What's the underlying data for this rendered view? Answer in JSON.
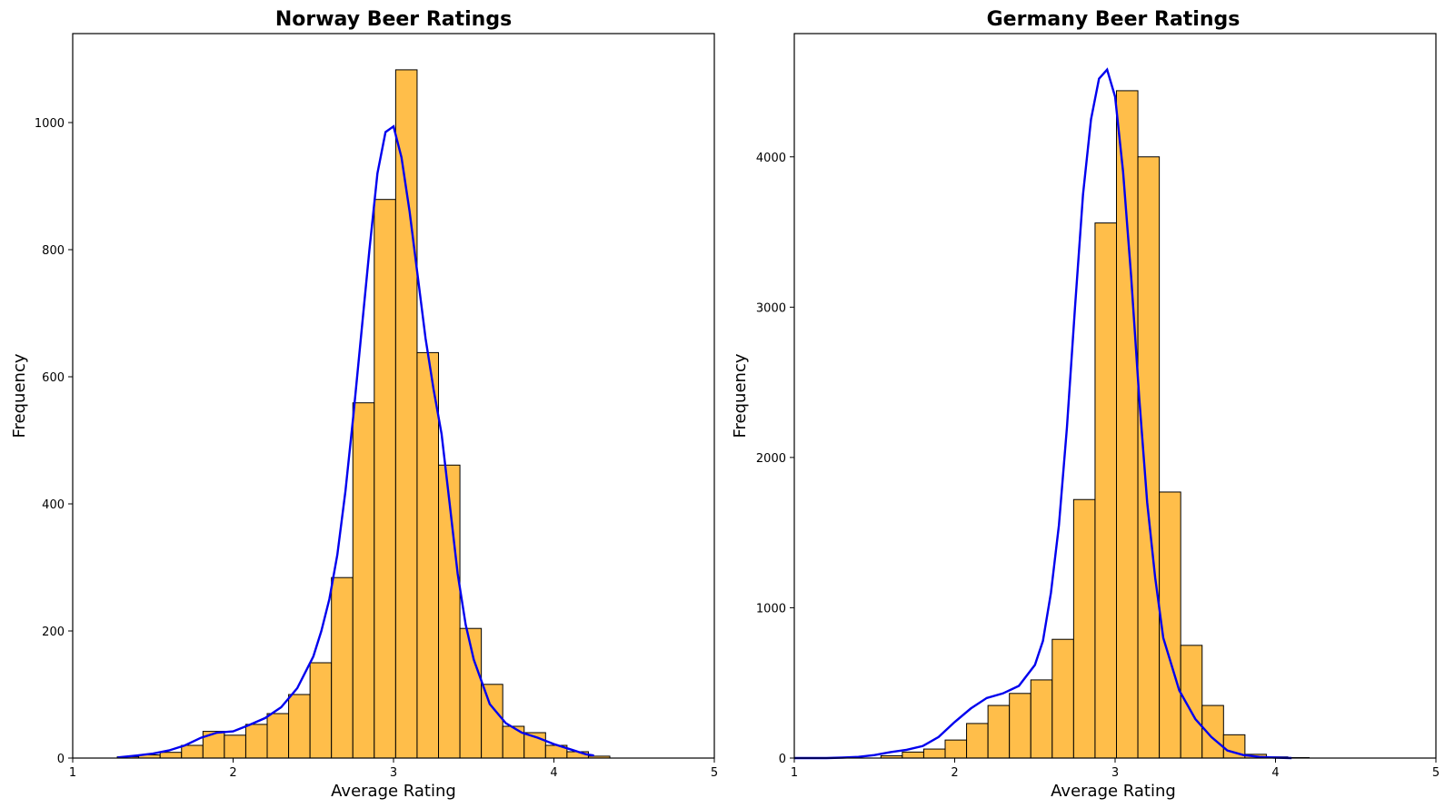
{
  "chart_data": [
    {
      "type": "bar",
      "title": "Norway Beer Ratings",
      "xlabel": "Average Rating",
      "ylabel": "Frequency",
      "xlim": [
        1,
        5
      ],
      "ylim": [
        0,
        1140
      ],
      "xticks": [
        1,
        2,
        3,
        4,
        5
      ],
      "yticks": [
        0,
        200,
        400,
        600,
        800,
        1000
      ],
      "bin_start": 1.278,
      "bin_width": 0.1335,
      "values": [
        2,
        5,
        9,
        20,
        42,
        36,
        53,
        70,
        100,
        150,
        284,
        559,
        879,
        1083,
        638,
        461,
        204,
        116,
        50,
        40,
        20,
        10,
        3
      ],
      "kde": {
        "x": [
          1.28,
          1.4,
          1.5,
          1.6,
          1.7,
          1.8,
          1.9,
          2.0,
          2.1,
          2.2,
          2.3,
          2.4,
          2.5,
          2.55,
          2.6,
          2.65,
          2.7,
          2.75,
          2.8,
          2.85,
          2.9,
          2.95,
          3.0,
          3.05,
          3.1,
          3.15,
          3.2,
          3.25,
          3.3,
          3.35,
          3.4,
          3.45,
          3.5,
          3.6,
          3.7,
          3.8,
          3.9,
          4.0,
          4.1,
          4.2,
          4.25
        ],
        "y": [
          1,
          4,
          7,
          12,
          20,
          32,
          40,
          42,
          52,
          63,
          80,
          110,
          160,
          200,
          250,
          320,
          420,
          540,
          670,
          800,
          920,
          985,
          994,
          945,
          860,
          760,
          660,
          580,
          510,
          400,
          290,
          210,
          155,
          85,
          55,
          40,
          32,
          22,
          14,
          6,
          4
        ]
      },
      "bar_color": "#ffbe4a",
      "edge_color": "#000000",
      "kde_color": "#0000ee"
    },
    {
      "type": "bar",
      "title": "Germany Beer Ratings",
      "xlabel": "Average Rating",
      "ylabel": "Frequency",
      "xlim": [
        1,
        5
      ],
      "ylim": [
        0,
        4820
      ],
      "xticks": [
        1,
        2,
        3,
        4,
        5
      ],
      "yticks": [
        0,
        1000,
        2000,
        3000,
        4000
      ],
      "bin_start": 1.54,
      "bin_width": 0.1335,
      "values": [
        15,
        40,
        60,
        120,
        230,
        350,
        430,
        520,
        790,
        1720,
        3560,
        4440,
        4000,
        1770,
        750,
        350,
        155,
        25,
        8,
        3
      ],
      "kde": {
        "x": [
          1.0,
          1.2,
          1.3,
          1.4,
          1.5,
          1.6,
          1.7,
          1.8,
          1.9,
          2.0,
          2.1,
          2.2,
          2.3,
          2.4,
          2.5,
          2.55,
          2.6,
          2.65,
          2.7,
          2.75,
          2.8,
          2.85,
          2.9,
          2.95,
          3.0,
          3.05,
          3.1,
          3.15,
          3.2,
          3.25,
          3.3,
          3.4,
          3.5,
          3.6,
          3.7,
          3.8,
          3.9,
          4.0,
          4.1
        ],
        "y": [
          0,
          0,
          3,
          8,
          20,
          40,
          55,
          80,
          140,
          240,
          330,
          400,
          430,
          480,
          620,
          780,
          1100,
          1550,
          2200,
          3000,
          3750,
          4250,
          4520,
          4580,
          4400,
          3900,
          3200,
          2400,
          1700,
          1200,
          800,
          450,
          260,
          140,
          50,
          20,
          8,
          3,
          0
        ]
      },
      "bar_color": "#ffbe4a",
      "edge_color": "#000000",
      "kde_color": "#0000ee"
    }
  ]
}
